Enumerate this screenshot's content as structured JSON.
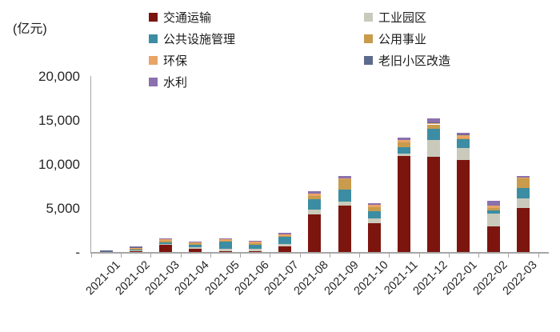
{
  "unit_label": "(亿元)",
  "chart_data": {
    "type": "bar",
    "stacked": true,
    "title": "",
    "unit_label": "(亿元)",
    "categories": [
      "2021-01",
      "2021-02",
      "2021-03",
      "2021-04",
      "2021-05",
      "2021-06",
      "2021-07",
      "2021-08",
      "2021-09",
      "2021-10",
      "2021-11",
      "2021-12",
      "2022-01",
      "2022-02",
      "2022-03"
    ],
    "series": [
      {
        "name": "交通运输",
        "color": "#7D150F",
        "values": [
          0,
          50,
          800,
          350,
          100,
          100,
          650,
          4250,
          5300,
          3250,
          10900,
          10800,
          10450,
          2900,
          5000
        ]
      },
      {
        "name": "工业园区",
        "color": "#C9CABB",
        "values": [
          0,
          150,
          100,
          180,
          250,
          300,
          250,
          600,
          450,
          550,
          300,
          1900,
          1350,
          1480,
          1050
        ]
      },
      {
        "name": "公共设施管理",
        "color": "#3C8DA3",
        "values": [
          0,
          100,
          180,
          250,
          800,
          450,
          850,
          1150,
          1350,
          850,
          730,
          1300,
          1050,
          360,
          1180
        ]
      },
      {
        "name": "公用事业",
        "color": "#C89B4D",
        "values": [
          0,
          100,
          180,
          180,
          150,
          180,
          100,
          350,
          1200,
          430,
          490,
          500,
          100,
          300,
          1100
        ]
      },
      {
        "name": "环保",
        "color": "#E9A466",
        "values": [
          0,
          100,
          180,
          130,
          150,
          120,
          120,
          300,
          100,
          250,
          300,
          200,
          350,
          250,
          100
        ]
      },
      {
        "name": "老旧小区改造",
        "color": "#5C6B8D",
        "values": [
          150,
          50,
          0,
          0,
          0,
          0,
          0,
          0,
          0,
          0,
          0,
          50,
          50,
          0,
          0
        ]
      },
      {
        "name": "水利",
        "color": "#8B70AE",
        "values": [
          0,
          50,
          130,
          120,
          100,
          150,
          180,
          300,
          250,
          250,
          300,
          400,
          200,
          500,
          180
        ]
      }
    ],
    "ylim": [
      0,
      20000
    ],
    "yticks": [
      {
        "label": "20,000",
        "value": 20000
      },
      {
        "label": "15,000",
        "value": 15000
      },
      {
        "label": "10,000",
        "value": 10000
      },
      {
        "label": "5,000",
        "value": 5000
      },
      {
        "label": "-",
        "value": 0
      }
    ],
    "grid": false,
    "legend_position": "top",
    "legend_columns": [
      [
        "交通运输",
        "公共设施管理",
        "环保",
        "水利"
      ],
      [
        "工业园区",
        "公用事业",
        "老旧小区改造"
      ]
    ]
  }
}
